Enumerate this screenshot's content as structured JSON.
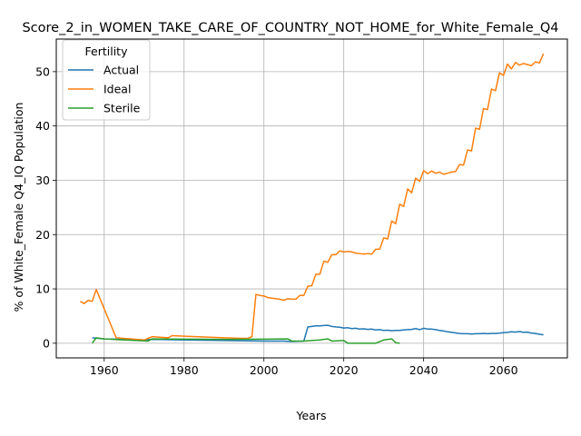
{
  "chart_data": {
    "type": "line",
    "title": "Score_2_in_WOMEN_TAKE_CARE_OF_COUNTRY_NOT_HOME_for_White_Female_Q4",
    "xlabel": "Years",
    "ylabel": "% of White_Female Q4_IQ Population",
    "xlim": [
      1948,
      2076
    ],
    "ylim": [
      -2.7,
      56
    ],
    "xticks": [
      1960,
      1980,
      2000,
      2020,
      2040,
      2060
    ],
    "yticks": [
      0,
      10,
      20,
      30,
      40,
      50
    ],
    "grid": true,
    "legend": {
      "title": "Fertility",
      "placement": "top-left"
    },
    "series": [
      {
        "name": "Actual",
        "color": "#1f77b4",
        "points": [
          [
            1957,
            1.0
          ],
          [
            1960,
            0.8
          ],
          [
            1965,
            0.7
          ],
          [
            1970,
            0.6
          ],
          [
            1972,
            0.7
          ],
          [
            1980,
            0.6
          ],
          [
            1990,
            0.5
          ],
          [
            2000,
            0.4
          ],
          [
            2005,
            0.4
          ],
          [
            2007,
            0.3
          ],
          [
            2010,
            0.4
          ],
          [
            2011,
            3.0
          ],
          [
            2012,
            3.1
          ],
          [
            2013,
            3.2
          ],
          [
            2014,
            3.2
          ],
          [
            2015,
            3.25
          ],
          [
            2016,
            3.3
          ],
          [
            2017,
            3.1
          ],
          [
            2018,
            3.0
          ],
          [
            2019,
            2.95
          ],
          [
            2020,
            2.8
          ],
          [
            2021,
            2.85
          ],
          [
            2022,
            2.7
          ],
          [
            2023,
            2.75
          ],
          [
            2024,
            2.6
          ],
          [
            2025,
            2.65
          ],
          [
            2026,
            2.55
          ],
          [
            2027,
            2.6
          ],
          [
            2028,
            2.45
          ],
          [
            2029,
            2.5
          ],
          [
            2030,
            2.35
          ],
          [
            2031,
            2.4
          ],
          [
            2032,
            2.3
          ],
          [
            2033,
            2.35
          ],
          [
            2034,
            2.35
          ],
          [
            2035,
            2.45
          ],
          [
            2036,
            2.5
          ],
          [
            2037,
            2.55
          ],
          [
            2038,
            2.7
          ],
          [
            2039,
            2.5
          ],
          [
            2040,
            2.75
          ],
          [
            2041,
            2.6
          ],
          [
            2042,
            2.6
          ],
          [
            2043,
            2.5
          ],
          [
            2044,
            2.35
          ],
          [
            2045,
            2.25
          ],
          [
            2046,
            2.1
          ],
          [
            2047,
            2.0
          ],
          [
            2048,
            1.9
          ],
          [
            2049,
            1.8
          ],
          [
            2050,
            1.75
          ],
          [
            2051,
            1.75
          ],
          [
            2052,
            1.7
          ],
          [
            2053,
            1.75
          ],
          [
            2054,
            1.75
          ],
          [
            2055,
            1.8
          ],
          [
            2056,
            1.75
          ],
          [
            2057,
            1.8
          ],
          [
            2058,
            1.8
          ],
          [
            2059,
            1.85
          ],
          [
            2060,
            1.95
          ],
          [
            2061,
            2.0
          ],
          [
            2062,
            2.1
          ],
          [
            2063,
            2.05
          ],
          [
            2064,
            2.15
          ],
          [
            2065,
            2.0
          ],
          [
            2066,
            2.05
          ],
          [
            2067,
            1.85
          ],
          [
            2068,
            1.8
          ],
          [
            2069,
            1.65
          ],
          [
            2070,
            1.55
          ]
        ]
      },
      {
        "name": "Ideal",
        "color": "#ff7f0e",
        "points": [
          [
            1954,
            7.7
          ],
          [
            1955,
            7.3
          ],
          [
            1956,
            7.9
          ],
          [
            1957,
            7.7
          ],
          [
            1958,
            9.9
          ],
          [
            1963,
            1.0
          ],
          [
            1970,
            0.6
          ],
          [
            1972,
            1.2
          ],
          [
            1976,
            1.0
          ],
          [
            1977,
            1.4
          ],
          [
            1980,
            1.3
          ],
          [
            1990,
            1.0
          ],
          [
            1995,
            0.9
          ],
          [
            1996,
            0.9
          ],
          [
            1997,
            1.2
          ],
          [
            1998,
            9.0
          ],
          [
            1999,
            8.8
          ],
          [
            2000,
            8.7
          ],
          [
            2001,
            8.4
          ],
          [
            2002,
            8.3
          ],
          [
            2003,
            8.2
          ],
          [
            2004,
            8.1
          ],
          [
            2005,
            7.9
          ],
          [
            2006,
            8.2
          ],
          [
            2007,
            8.1
          ],
          [
            2008,
            8.1
          ],
          [
            2009,
            8.8
          ],
          [
            2010,
            8.8
          ],
          [
            2011,
            10.5
          ],
          [
            2012,
            10.6
          ],
          [
            2013,
            12.7
          ],
          [
            2014,
            12.7
          ],
          [
            2015,
            15.1
          ],
          [
            2016,
            14.9
          ],
          [
            2017,
            16.3
          ],
          [
            2018,
            16.3
          ],
          [
            2019,
            17.0
          ],
          [
            2020,
            16.8
          ],
          [
            2021,
            16.9
          ],
          [
            2022,
            16.8
          ],
          [
            2023,
            16.6
          ],
          [
            2024,
            16.5
          ],
          [
            2025,
            16.4
          ],
          [
            2026,
            16.5
          ],
          [
            2027,
            16.4
          ],
          [
            2028,
            17.3
          ],
          [
            2029,
            17.3
          ],
          [
            2030,
            19.4
          ],
          [
            2031,
            19.2
          ],
          [
            2032,
            22.5
          ],
          [
            2033,
            22.0
          ],
          [
            2034,
            25.6
          ],
          [
            2035,
            25.2
          ],
          [
            2036,
            28.4
          ],
          [
            2037,
            27.7
          ],
          [
            2038,
            30.4
          ],
          [
            2039,
            29.8
          ],
          [
            2040,
            31.8
          ],
          [
            2041,
            31.2
          ],
          [
            2042,
            31.7
          ],
          [
            2043,
            31.3
          ],
          [
            2044,
            31.5
          ],
          [
            2045,
            31.1
          ],
          [
            2046,
            31.3
          ],
          [
            2047,
            31.5
          ],
          [
            2048,
            31.6
          ],
          [
            2049,
            32.9
          ],
          [
            2050,
            32.8
          ],
          [
            2051,
            35.6
          ],
          [
            2052,
            35.4
          ],
          [
            2053,
            39.6
          ],
          [
            2054,
            39.4
          ],
          [
            2055,
            43.2
          ],
          [
            2056,
            43.0
          ],
          [
            2057,
            46.8
          ],
          [
            2058,
            46.5
          ],
          [
            2059,
            49.8
          ],
          [
            2060,
            49.3
          ],
          [
            2061,
            51.4
          ],
          [
            2062,
            50.5
          ],
          [
            2063,
            51.7
          ],
          [
            2064,
            51.2
          ],
          [
            2065,
            51.5
          ],
          [
            2066,
            51.3
          ],
          [
            2067,
            51.1
          ],
          [
            2068,
            51.8
          ],
          [
            2069,
            51.6
          ],
          [
            2070,
            53.3
          ]
        ]
      },
      {
        "name": "Sterile",
        "color": "#2ca02c",
        "points": [
          [
            1957,
            0.0
          ],
          [
            1958,
            1.0
          ],
          [
            1960,
            0.8
          ],
          [
            1965,
            0.6
          ],
          [
            1971,
            0.4
          ],
          [
            1972,
            0.8
          ],
          [
            1980,
            0.75
          ],
          [
            1990,
            0.7
          ],
          [
            2000,
            0.75
          ],
          [
            2006,
            0.8
          ],
          [
            2007,
            0.4
          ],
          [
            2010,
            0.4
          ],
          [
            2014,
            0.6
          ],
          [
            2015,
            0.7
          ],
          [
            2016,
            0.8
          ],
          [
            2017,
            0.4
          ],
          [
            2020,
            0.5
          ],
          [
            2021,
            0.0
          ],
          [
            2025,
            0.0
          ],
          [
            2028,
            0.0
          ],
          [
            2030,
            0.6
          ],
          [
            2032,
            0.8
          ],
          [
            2033,
            0.1
          ],
          [
            2034,
            0.0
          ]
        ]
      }
    ]
  }
}
